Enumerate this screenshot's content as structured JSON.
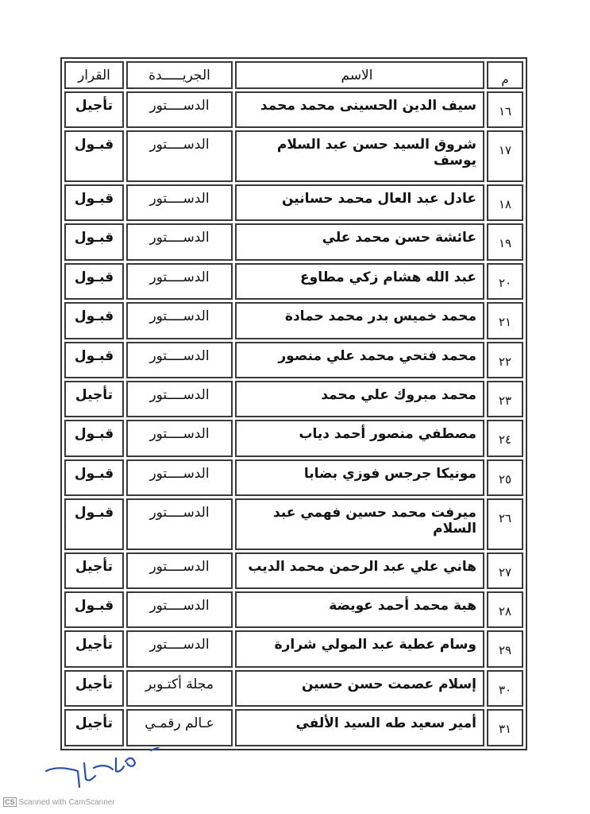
{
  "table": {
    "headers": {
      "number": "م",
      "name": "الاسم",
      "newspaper": "الجريـــــدة",
      "decision": "القرار"
    },
    "rows": [
      {
        "number": "١٦",
        "name": "سيف الدين الحسينى محمد محمد",
        "newspaper": "الدســــتور",
        "decision": "تأجيل"
      },
      {
        "number": "١٧",
        "name": "شروق السيد حسن عبد السلام يوسف",
        "newspaper": "الدســــتور",
        "decision": "قبـول"
      },
      {
        "number": "١٨",
        "name": "عادل عبد العال محمد حسانين",
        "newspaper": "الدســــتور",
        "decision": "قبـول"
      },
      {
        "number": "١٩",
        "name": "عائشة حسن محمد علي",
        "newspaper": "الدســــتور",
        "decision": "قبـول"
      },
      {
        "number": "٢٠",
        "name": "عبد الله هشام زكي مطاوع",
        "newspaper": "الدســــتور",
        "decision": "قبـول"
      },
      {
        "number": "٢١",
        "name": "محمد خميس بدر محمد حمادة",
        "newspaper": "الدســــتور",
        "decision": "قبـول"
      },
      {
        "number": "٢٢",
        "name": "محمد فتحي محمد علي منصور",
        "newspaper": "الدســــتور",
        "decision": "قبـول"
      },
      {
        "number": "٢٣",
        "name": "محمد مبروك علي محمد",
        "newspaper": "الدســــتور",
        "decision": "تأجيل"
      },
      {
        "number": "٢٤",
        "name": "مصطفي منصور أحمد دياب",
        "newspaper": "الدســــتور",
        "decision": "قبـول"
      },
      {
        "number": "٢٥",
        "name": "مونيكا جرجس فوزي بضابا",
        "newspaper": "الدســــتور",
        "decision": "قبـول"
      },
      {
        "number": "٢٦",
        "name": "ميرفت محمد حسين فهمي عبد السلام",
        "newspaper": "الدســــتور",
        "decision": "قبـول"
      },
      {
        "number": "٢٧",
        "name": "هاني علي عبد الرحمن محمد الديب",
        "newspaper": "الدســــتور",
        "decision": "تأجيل"
      },
      {
        "number": "٢٨",
        "name": "هبة محمد أحمد عويضة",
        "newspaper": "الدســــتور",
        "decision": "قبـول"
      },
      {
        "number": "٢٩",
        "name": "وسام عطية عبد المولي شرارة",
        "newspaper": "الدســــتور",
        "decision": "تأجيل"
      },
      {
        "number": "٣٠",
        "name": "إسلام عصمت حسن حسين",
        "newspaper": "مجلة أكتـوبر",
        "decision": "تأجيل"
      },
      {
        "number": "٣١",
        "name": "أمير سعيد طه السيد الألفي",
        "newspaper": "عـالم رقمـي",
        "decision": "تأجيل"
      }
    ]
  },
  "signature": {
    "color": "#2a4fb0"
  },
  "watermark": {
    "logo": "CS",
    "text": "Scanned with CamScanner"
  }
}
